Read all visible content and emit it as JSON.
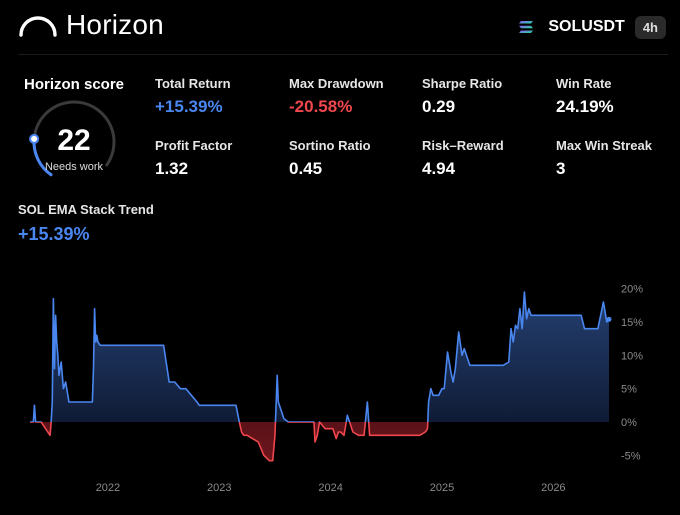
{
  "header": {
    "brand": "Horizon",
    "pair": "SOLUSDT",
    "timeframe": "4h",
    "icons": [
      "horizon-logo-icon",
      "solana-icon"
    ]
  },
  "score": {
    "title": "Horizon score",
    "value": "22",
    "label": "Needs work",
    "fraction": 0.22
  },
  "metrics": [
    {
      "label": "Total Return",
      "value": "+15.39%",
      "tone": "blue"
    },
    {
      "label": "Max Drawdown",
      "value": "-20.58%",
      "tone": "red"
    },
    {
      "label": "Sharpe Ratio",
      "value": "0.29",
      "tone": "white"
    },
    {
      "label": "Win Rate",
      "value": "24.19%",
      "tone": "white"
    },
    {
      "label": "Profit Factor",
      "value": "1.32",
      "tone": "white"
    },
    {
      "label": "Sortino Ratio",
      "value": "0.45",
      "tone": "white"
    },
    {
      "label": "Risk–Reward",
      "value": "4.94",
      "tone": "white"
    },
    {
      "label": "Max Win Streak",
      "value": "3",
      "tone": "white"
    }
  ],
  "strategy": {
    "name": "SOL EMA Stack Trend",
    "return": "+15.39%"
  },
  "colors": {
    "accent": "#4a86f0",
    "negative": "#f0474f",
    "background": "#000000"
  },
  "chart_data": {
    "type": "area",
    "x_ticks": [
      "2022",
      "2023",
      "2024",
      "2025",
      "2026"
    ],
    "y_ticks": [
      "20%",
      "15%",
      "10%",
      "5%",
      "0%",
      "-5%"
    ],
    "ylim": [
      -6,
      21
    ],
    "xlim": [
      2021.3,
      2026.5
    ],
    "series": [
      {
        "x": [
          2021.3,
          2021.33,
          2021.34,
          2021.35,
          2021.36,
          2021.4,
          2021.48,
          2021.49,
          2021.5,
          2021.51,
          2021.52,
          2021.53,
          2021.54,
          2021.55,
          2021.56,
          2021.58,
          2021.6,
          2021.62,
          2021.65,
          2021.7,
          2021.73,
          2021.76,
          2021.8,
          2021.83,
          2021.86,
          2021.87,
          2021.88,
          2021.89,
          2021.9,
          2021.91,
          2021.93,
          2021.95,
          2021.97,
          2021.99,
          2022.0,
          2022.1,
          2022.3,
          2022.5,
          2022.55,
          2022.6,
          2022.65,
          2022.7,
          2022.75,
          2022.8,
          2022.82,
          2022.9,
          2023.0,
          2023.15,
          2023.18,
          2023.2,
          2023.22,
          2023.25,
          2023.3,
          2023.35,
          2023.4,
          2023.45,
          2023.48,
          2023.5,
          2023.52,
          2023.53,
          2023.55,
          2023.58,
          2023.62,
          2023.68,
          2023.75,
          2023.82,
          2023.85,
          2023.86,
          2023.88,
          2023.9,
          2023.95,
          2024.02,
          2024.05,
          2024.07,
          2024.09,
          2024.12,
          2024.15,
          2024.2,
          2024.25,
          2024.3,
          2024.33,
          2024.35,
          2024.38,
          2024.4,
          2024.42,
          2024.45,
          2024.5,
          2024.55,
          2024.6,
          2024.65,
          2024.7,
          2024.75,
          2024.8,
          2024.85,
          2024.87,
          2024.88,
          2024.9,
          2024.92,
          2024.95,
          2024.97,
          2025.0,
          2025.02,
          2025.05,
          2025.08,
          2025.1,
          2025.12,
          2025.15,
          2025.18,
          2025.2,
          2025.25,
          2025.3,
          2025.35,
          2025.38,
          2025.4,
          2025.45,
          2025.5,
          2025.55,
          2025.6,
          2025.62,
          2025.64,
          2025.66,
          2025.68,
          2025.7,
          2025.72,
          2025.74,
          2025.76,
          2025.78,
          2025.8,
          2025.85,
          2025.9,
          2026.0,
          2026.1,
          2026.2,
          2026.25,
          2026.28,
          2026.3,
          2026.35,
          2026.4,
          2026.45,
          2026.48,
          2026.5
        ],
        "y": [
          0.0,
          0.0,
          2.5,
          0.0,
          0.0,
          0.0,
          -2.0,
          0.0,
          3.0,
          18.5,
          8.0,
          16.0,
          12.0,
          10.0,
          7.0,
          9.0,
          5.0,
          6.0,
          3.0,
          3.0,
          3.0,
          3.0,
          3.0,
          3.0,
          3.0,
          8.0,
          17.0,
          12.0,
          13.0,
          12.0,
          11.5,
          11.5,
          11.5,
          11.5,
          11.5,
          11.5,
          11.5,
          11.5,
          6.0,
          6.0,
          5.0,
          5.0,
          4.0,
          3.0,
          2.5,
          2.5,
          2.5,
          2.5,
          0.0,
          -1.5,
          -2.0,
          -2.0,
          -2.5,
          -3.0,
          -5.0,
          -5.8,
          -5.8,
          -2.0,
          7.0,
          3.0,
          2.0,
          0.5,
          0.0,
          0.0,
          0.0,
          0.0,
          0.0,
          -3.0,
          -2.0,
          0.0,
          -1.0,
          -1.0,
          -2.5,
          -1.5,
          -1.5,
          -2.0,
          1.0,
          -1.5,
          -2.0,
          -2.0,
          3.0,
          -2.0,
          -2.0,
          -2.0,
          -2.0,
          -2.0,
          -2.0,
          -2.0,
          -2.0,
          -2.0,
          -2.0,
          -2.0,
          -2.0,
          -1.5,
          -1.0,
          3.0,
          5.0,
          4.0,
          4.0,
          4.0,
          5.0,
          5.0,
          10.5,
          7.5,
          6.0,
          8.0,
          13.5,
          10.0,
          11.0,
          8.5,
          8.5,
          8.5,
          8.5,
          8.5,
          8.5,
          8.5,
          8.5,
          9.0,
          14.0,
          12.0,
          14.5,
          14.0,
          17.0,
          14.0,
          19.5,
          15.5,
          17.0,
          16.0,
          16.0,
          16.0,
          16.0,
          16.0,
          16.0,
          16.0,
          14.0,
          14.0,
          14.0,
          14.0,
          18.0,
          15.0,
          15.4
        ],
        "line_color": "#4a86f0",
        "negative_color": "#f0474f"
      }
    ]
  }
}
